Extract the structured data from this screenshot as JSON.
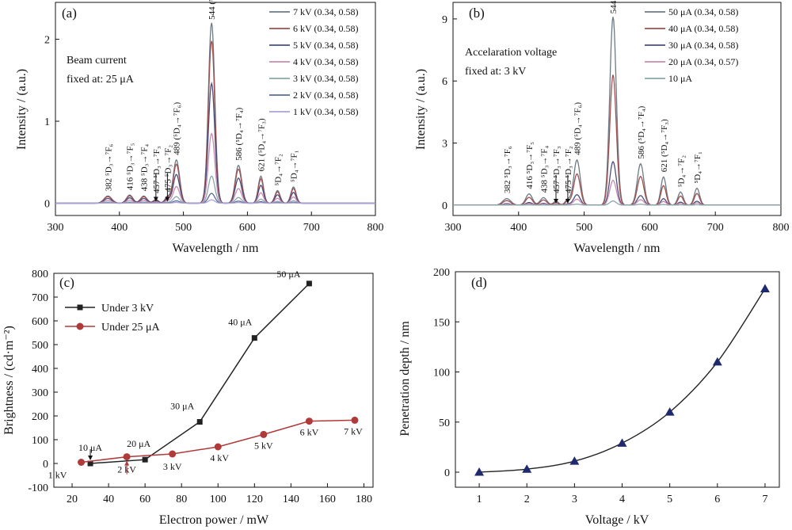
{
  "chart_data": [
    {
      "panel": "(a)",
      "type": "line",
      "xlabel": "Wavelength / nm",
      "ylabel": "Intensity / (a.u.)",
      "xlim": [
        300,
        800
      ],
      "ylim": [
        -0.15,
        2.45
      ],
      "xticks": [
        300,
        400,
        500,
        600,
        700,
        800
      ],
      "yticks": [
        0,
        1,
        2
      ],
      "note": [
        "Beam current",
        "fixed at: 25 μA"
      ],
      "peaks_nm": [
        382,
        416,
        438,
        457,
        475,
        489,
        544,
        586,
        621,
        647,
        672
      ],
      "peak_rel": [
        0.04,
        0.045,
        0.04,
        0.02,
        0.035,
        0.24,
        1.0,
        0.21,
        0.15,
        0.07,
        0.09
      ],
      "peak_labels": [
        {
          "x": 382,
          "text": "382 ⁵D₃→⁷F₆"
        },
        {
          "x": 416,
          "text": "416 ⁵D₃→⁷F₅"
        },
        {
          "x": 438,
          "text": "438 ⁵D₃→⁷F₄"
        },
        {
          "x": 457,
          "text": "457 ⁵D₃→⁷F₃"
        },
        {
          "x": 475,
          "text": "475 ⁵D₃→⁷F₂"
        },
        {
          "x": 489,
          "text": "489 (⁵D₄→⁷F₆)"
        },
        {
          "x": 544,
          "text": "544 (⁵D₄→⁷F₅)"
        },
        {
          "x": 586,
          "text": "586 (⁵D₄→⁷F₄)"
        },
        {
          "x": 621,
          "text": "621 (⁵D₄→⁷F₃)"
        },
        {
          "x": 647,
          "text": "⁵D₄→⁷F₂"
        },
        {
          "x": 672,
          "text": "⁵D₄→⁷F₁"
        }
      ],
      "series": [
        {
          "name": "7 kV (0.34, 0.58)",
          "peak": 2.2,
          "color": "#6d7a86"
        },
        {
          "name": "6 kV (0.34, 0.58)",
          "peak": 1.98,
          "color": "#a05050"
        },
        {
          "name": "5 kV (0.34, 0.58)",
          "peak": 1.46,
          "color": "#4a4f7a"
        },
        {
          "name": "4 kV (0.34, 0.58)",
          "peak": 0.85,
          "color": "#c98ab0"
        },
        {
          "name": "3 kV (0.34, 0.58)",
          "peak": 0.33,
          "color": "#8aa8a8"
        },
        {
          "name": "2 kV (0.34, 0.58)",
          "peak": 0.12,
          "color": "#5a6b9a"
        },
        {
          "name": "1 kV (0.34, 0.58)",
          "peak": 0.04,
          "color": "#a9a2d9"
        }
      ]
    },
    {
      "panel": "(b)",
      "type": "line",
      "xlabel": "Wavelength / nm",
      "ylabel": "Intensity / (a.u.)",
      "xlim": [
        300,
        800
      ],
      "ylim": [
        -0.5,
        9.8
      ],
      "xticks": [
        300,
        400,
        500,
        600,
        700,
        800
      ],
      "yticks": [
        0,
        3,
        6,
        9
      ],
      "note": [
        "Accelaration voltage",
        "fixed at: 3 kV"
      ],
      "peaks_nm": [
        382,
        416,
        438,
        457,
        475,
        489,
        544,
        586,
        621,
        647,
        672
      ],
      "peak_rel": [
        0.035,
        0.06,
        0.04,
        0.02,
        0.03,
        0.24,
        1.0,
        0.22,
        0.15,
        0.07,
        0.09
      ],
      "peak_labels": [
        {
          "x": 382,
          "text": "382 ⁵D₃→⁷F₆"
        },
        {
          "x": 416,
          "text": "416 ⁵D₃→⁷F₅"
        },
        {
          "x": 438,
          "text": "438 ⁵D₃→⁷F₄"
        },
        {
          "x": 457,
          "text": "457 ⁵D₃→⁷F₃"
        },
        {
          "x": 475,
          "text": "475 ⁵D₃→⁷F₂"
        },
        {
          "x": 489,
          "text": "489 (⁵D₄→⁷F₆)"
        },
        {
          "x": 544,
          "text": "544 (⁵D₄→⁷F₅)"
        },
        {
          "x": 586,
          "text": "586 (⁵D₄→⁷F₄)"
        },
        {
          "x": 621,
          "text": "621 (⁵D₄→⁷F₃)"
        },
        {
          "x": 647,
          "text": "⁵D₄→⁷F₂"
        },
        {
          "x": 672,
          "text": "⁵D₄→⁷F₁"
        }
      ],
      "series": [
        {
          "name": "50 μA (0.34, 0.58)",
          "peak": 9.1,
          "color": "#6d7a86"
        },
        {
          "name": "40 μA (0.34, 0.58)",
          "peak": 6.3,
          "color": "#a05050"
        },
        {
          "name": "30 μA (0.34, 0.58)",
          "peak": 2.1,
          "color": "#4a4f7a"
        },
        {
          "name": "20 μA (0.34, 0.57)",
          "peak": 1.2,
          "color": "#c98ab0"
        },
        {
          "name": "10 μA",
          "peak": 0.2,
          "color": "#8aa8a8"
        }
      ]
    },
    {
      "panel": "(c)",
      "type": "line",
      "xlabel": "Electron power / mW",
      "ylabel": "Brightness / (cd·m⁻²)",
      "xlim": [
        10,
        185
      ],
      "ylim": [
        -100,
        800
      ],
      "xticks": [
        20,
        40,
        60,
        80,
        100,
        120,
        140,
        160,
        180
      ],
      "yticks": [
        -100,
        0,
        100,
        200,
        300,
        400,
        500,
        600,
        700,
        800
      ],
      "series": [
        {
          "name": "Under 3 kV",
          "color": "#222222",
          "marker": "square",
          "x": [
            30,
            60,
            90,
            120,
            150
          ],
          "y": [
            0,
            16,
            175,
            528,
            757
          ],
          "point_labels": [
            "10 μA",
            "20 μA",
            "30 μA",
            "40 μA",
            "50 μA"
          ]
        },
        {
          "name": "Under 25 μA",
          "color": "#b03a3a",
          "marker": "circle",
          "x": [
            25,
            50,
            75,
            100,
            125,
            150,
            175
          ],
          "y": [
            5,
            28,
            40,
            70,
            122,
            178,
            182
          ],
          "point_labels": [
            "1 kV",
            "2 kV",
            "3 kV",
            "4 kV",
            "5 kV",
            "6 kV",
            "7 kV"
          ]
        }
      ]
    },
    {
      "panel": "(d)",
      "type": "line",
      "xlabel": "Voltage / kV",
      "ylabel": "Penetration depth / nm",
      "xlim": [
        0.5,
        7.3
      ],
      "ylim": [
        -15,
        200
      ],
      "xticks": [
        1,
        2,
        3,
        4,
        5,
        6,
        7
      ],
      "yticks": [
        0,
        50,
        100,
        150,
        200
      ],
      "series": [
        {
          "name": "",
          "color": "#1f2a6e",
          "marker": "triangle",
          "x": [
            1,
            2,
            3,
            4,
            5,
            6,
            7
          ],
          "y": [
            0,
            3,
            11,
            29,
            60,
            110,
            183
          ]
        }
      ]
    }
  ]
}
